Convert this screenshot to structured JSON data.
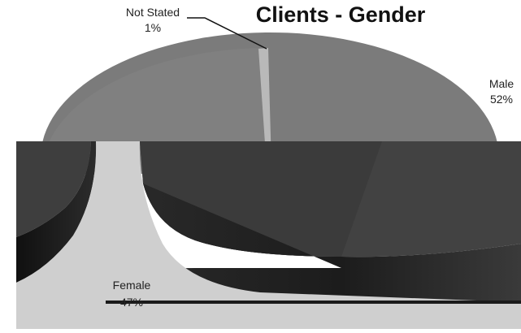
{
  "chart_data": {
    "type": "pie",
    "title": "Clients - Gender",
    "style": "3d-exploded",
    "slices": [
      {
        "label": "Male",
        "value": 52,
        "value_label": "52%",
        "color": "#7a7a7a"
      },
      {
        "label": "Female",
        "value": 47,
        "value_label": "47%",
        "color": "#8c8c8c"
      },
      {
        "label": "Not Stated",
        "value": 1,
        "value_label": "1%",
        "color": "#b4b4b4"
      }
    ]
  }
}
